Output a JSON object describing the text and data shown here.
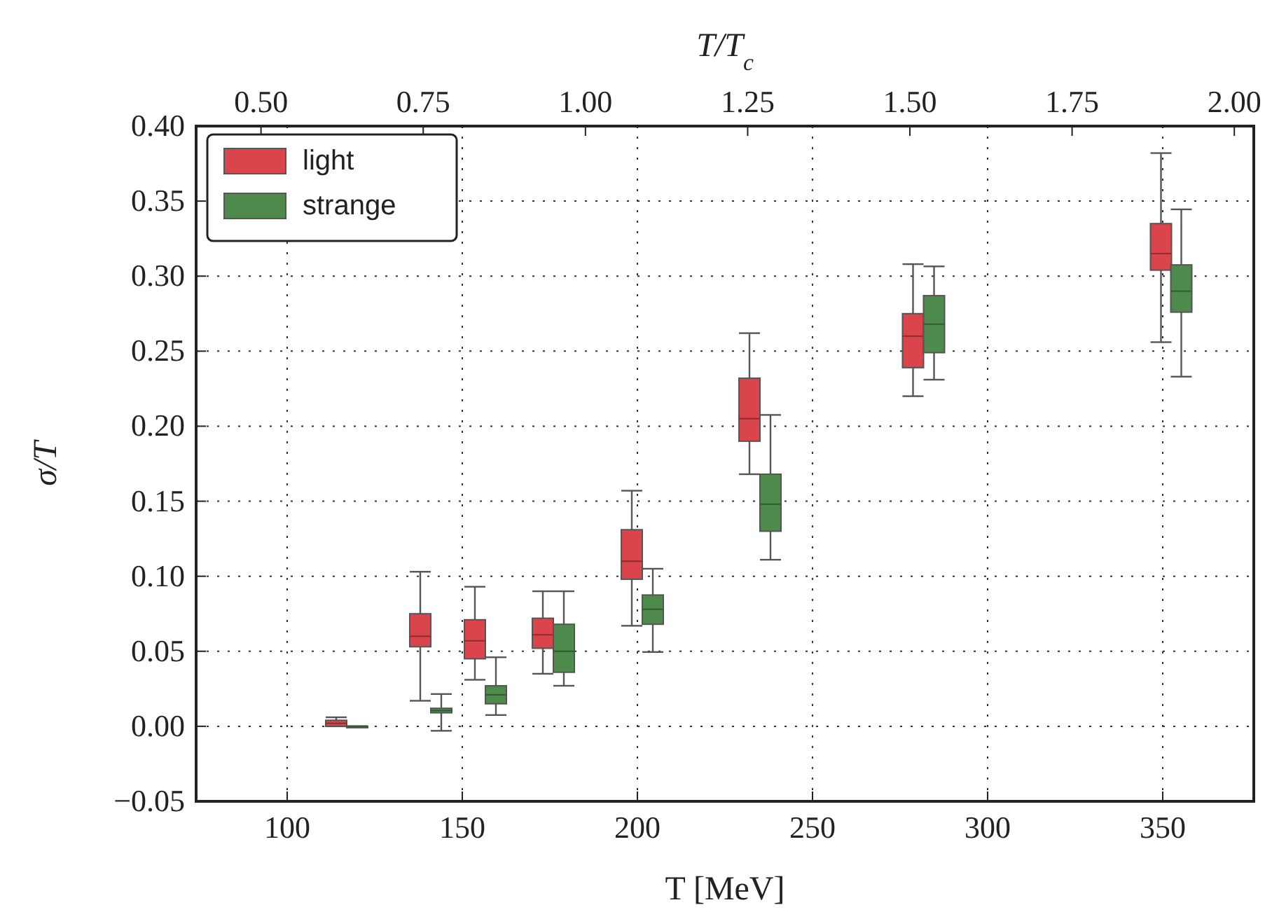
{
  "chart_data": {
    "type": "box",
    "xlabel": "T [MeV]",
    "ylabel": "σ/T",
    "x2label": "T/T$_{c}$",
    "xlim": [
      74,
      376
    ],
    "xticks": [
      100,
      150,
      200,
      250,
      300,
      350
    ],
    "x2lim": [
      0.4,
      2.03
    ],
    "x2ticks": [
      {
        "value": 0.5,
        "label": "0.50"
      },
      {
        "value": 0.75,
        "label": "0.75"
      },
      {
        "value": 1.0,
        "label": "1.00"
      },
      {
        "value": 1.25,
        "label": "1.25"
      },
      {
        "value": 1.5,
        "label": "1.50"
      },
      {
        "value": 1.75,
        "label": "1.75"
      },
      {
        "value": 2.0,
        "label": "2.00"
      }
    ],
    "ylim": [
      -0.05,
      0.4
    ],
    "yticks": [
      {
        "value": -0.05,
        "label": "−0.05"
      },
      {
        "value": 0,
        "label": "0.00"
      },
      {
        "value": 0.05,
        "label": "0.05"
      },
      {
        "value": 0.1,
        "label": "0.10"
      },
      {
        "value": 0.15,
        "label": "0.15"
      },
      {
        "value": 0.2,
        "label": "0.20"
      },
      {
        "value": 0.25,
        "label": "0.25"
      },
      {
        "value": 0.3,
        "label": "0.30"
      },
      {
        "value": 0.35,
        "label": "0.35"
      },
      {
        "value": 0.4,
        "label": "0.40"
      }
    ],
    "grid": true,
    "legend": "top left",
    "series": [
      {
        "name": "light",
        "color": "#d9454a",
        "x": [
          114,
          138,
          153.6,
          173,
          198.4,
          232,
          278.7,
          349.5
        ],
        "boxes": [
          {
            "low": 0.0,
            "q1": 0.0,
            "median": 0.002,
            "q3": 0.004,
            "high": 0.006
          },
          {
            "low": 0.017,
            "q1": 0.053,
            "median": 0.06,
            "q3": 0.075,
            "high": 0.103
          },
          {
            "low": 0.031,
            "q1": 0.045,
            "median": 0.057,
            "q3": 0.071,
            "high": 0.093
          },
          {
            "low": 0.035,
            "q1": 0.052,
            "median": 0.061,
            "q3": 0.072,
            "high": 0.09
          },
          {
            "low": 0.067,
            "q1": 0.098,
            "median": 0.11,
            "q3": 0.131,
            "high": 0.157
          },
          {
            "low": 0.168,
            "q1": 0.19,
            "median": 0.205,
            "q3": 0.232,
            "high": 0.262
          },
          {
            "low": 0.22,
            "q1": 0.239,
            "median": 0.26,
            "q3": 0.275,
            "high": 0.308
          },
          {
            "low": 0.256,
            "q1": 0.304,
            "median": 0.315,
            "q3": 0.335,
            "high": 0.382
          }
        ]
      },
      {
        "name": "strange",
        "color": "#4e8a4c",
        "x": [
          120,
          144,
          159.6,
          179,
          204.4,
          238,
          284.7,
          355.3
        ],
        "boxes": [
          {
            "low": 0.0,
            "q1": 0.0,
            "median": 0.0,
            "q3": 0.0,
            "high": 0.0
          },
          {
            "low": -0.003,
            "q1": 0.009,
            "median": 0.0105,
            "q3": 0.012,
            "high": 0.0215
          },
          {
            "low": 0.0075,
            "q1": 0.015,
            "median": 0.021,
            "q3": 0.027,
            "high": 0.046
          },
          {
            "low": 0.027,
            "q1": 0.036,
            "median": 0.05,
            "q3": 0.068,
            "high": 0.09
          },
          {
            "low": 0.0495,
            "q1": 0.068,
            "median": 0.078,
            "q3": 0.0875,
            "high": 0.105
          },
          {
            "low": 0.111,
            "q1": 0.13,
            "median": 0.148,
            "q3": 0.168,
            "high": 0.2075
          },
          {
            "low": 0.231,
            "q1": 0.249,
            "median": 0.268,
            "q3": 0.287,
            "high": 0.3065
          },
          {
            "low": 0.233,
            "q1": 0.276,
            "median": 0.29,
            "q3": 0.3075,
            "high": 0.3445
          }
        ]
      }
    ]
  }
}
